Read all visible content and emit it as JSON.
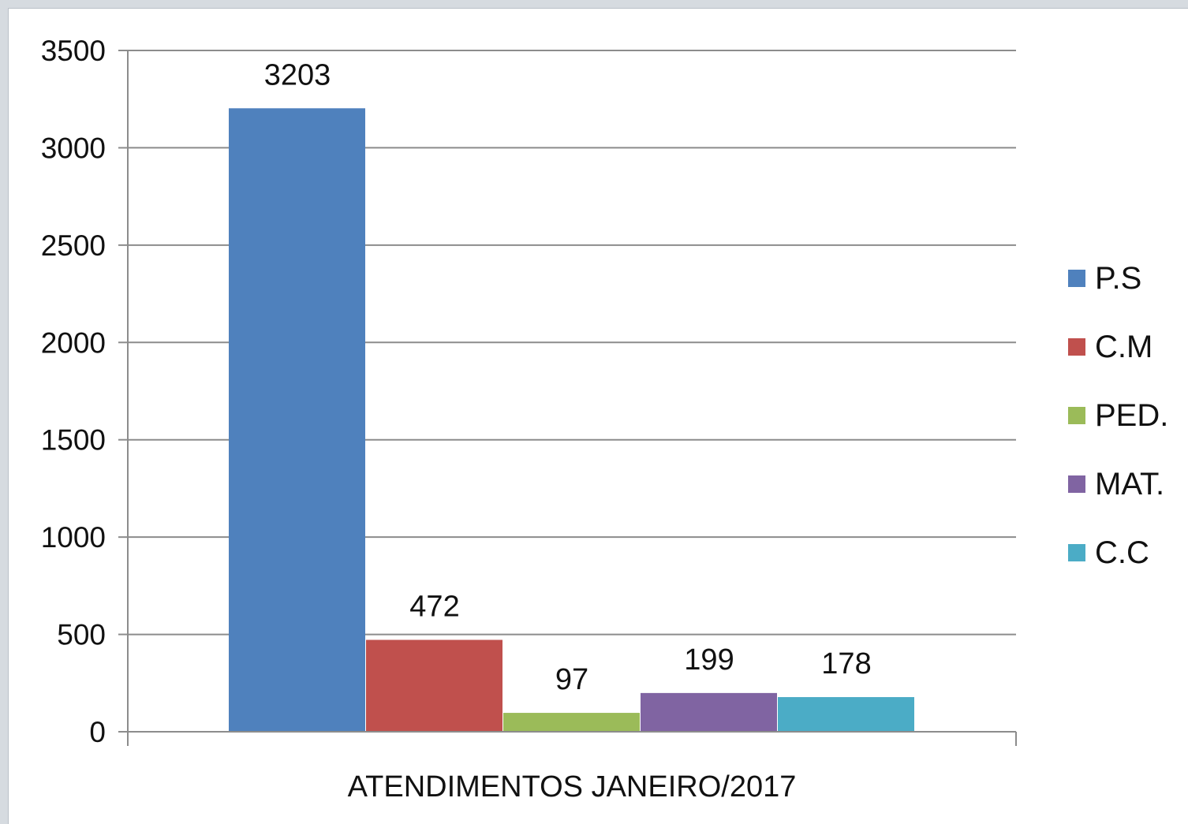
{
  "chart_data": {
    "type": "bar",
    "title": "",
    "xlabel": "ATENDIMENTOS JANEIRO/2017",
    "ylabel": "",
    "ylim": [
      0,
      3500
    ],
    "yticks": [
      0,
      500,
      1000,
      1500,
      2000,
      2500,
      3000,
      3500
    ],
    "grid": true,
    "legend_position": "right",
    "categories": [
      "ATENDIMENTOS JANEIRO/2017"
    ],
    "series": [
      {
        "name": "P.S",
        "values": [
          3203
        ],
        "color": "#4f81bd"
      },
      {
        "name": "C.M",
        "values": [
          472
        ],
        "color": "#c0504d"
      },
      {
        "name": "PED.",
        "values": [
          97
        ],
        "color": "#9bbb59"
      },
      {
        "name": "MAT.",
        "values": [
          199
        ],
        "color": "#8064a2"
      },
      {
        "name": "C.C",
        "values": [
          178
        ],
        "color": "#4bacc6"
      }
    ]
  }
}
